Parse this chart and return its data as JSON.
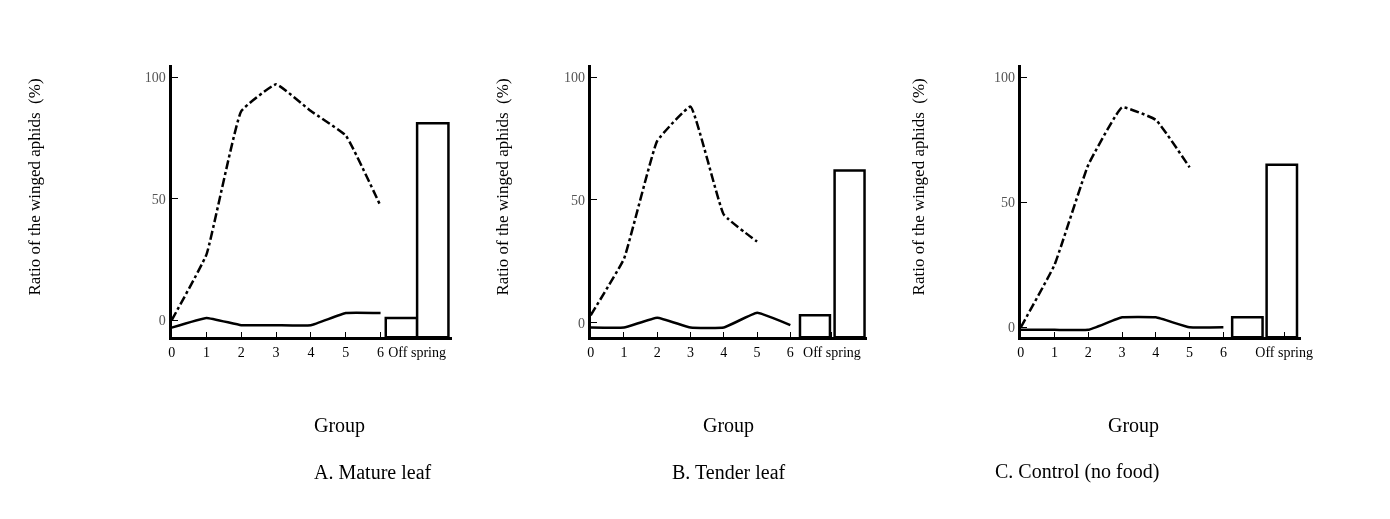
{
  "chart_data": [
    {
      "type": "line",
      "title": "A. Mature leaf",
      "xlabel": "Group",
      "ylabel": "Ratio of the winged aphids  (%)",
      "xlim": [
        0,
        8.05
      ],
      "xticks": [
        0,
        1,
        2,
        3,
        4,
        5,
        6,
        {
          "value": 7.05,
          "label": "Off spring"
        }
      ],
      "ylim": [
        -7,
        105
      ],
      "yticks": [
        0,
        50,
        100
      ],
      "series": [
        {
          "x": [
            0,
            1,
            2,
            3,
            4,
            5,
            6
          ],
          "values": [
            0,
            27,
            86,
            97,
            86,
            76,
            47
          ],
          "color": "#000000",
          "line_style": "dashed"
        },
        {
          "x": [
            0,
            1,
            2,
            3,
            4,
            5,
            6
          ],
          "values": [
            -3,
            1,
            -2,
            -2,
            -2,
            3,
            3
          ],
          "color": "#000000",
          "line_style": "solid"
        },
        {
          "type": "bar",
          "x": [
            6.6,
            7.5
          ],
          "values": [
            8,
            88
          ],
          "base": [
            -7,
            -7
          ],
          "colors": [
            "#ffffff",
            "#ffffff"
          ]
        }
      ]
    },
    {
      "type": "line",
      "title": "B. Tender leaf",
      "xlabel": "Group",
      "ylabel": "Ratio of the winged aphids  (%)",
      "xlim": [
        0,
        8.3
      ],
      "xticks": [
        0,
        1,
        2,
        3,
        4,
        5,
        6,
        {
          "value": 7.25,
          "label": "Off spring"
        }
      ],
      "ylim": [
        -6,
        105
      ],
      "yticks": [
        0,
        50,
        100
      ],
      "series": [
        {
          "x": [
            0,
            1,
            2,
            3,
            4,
            5
          ],
          "values": [
            3,
            26,
            74,
            88,
            44,
            33
          ],
          "color": "#000000",
          "line_style": "dashed"
        },
        {
          "x": [
            0,
            1,
            2,
            3,
            4,
            5,
            6
          ],
          "values": [
            -2,
            -2,
            2,
            -2,
            -2,
            4,
            -1
          ],
          "color": "#000000",
          "line_style": "solid"
        },
        {
          "type": "bar",
          "x": [
            6.74,
            7.78
          ],
          "values": [
            9,
            68
          ],
          "base": [
            -6,
            -6
          ],
          "colors": [
            "#ffffff",
            "#ffffff"
          ]
        }
      ]
    },
    {
      "type": "line",
      "title": "C. Control (no food)",
      "xlabel": "Group",
      "ylabel": "Ratio of the winged aphids  (%)",
      "xlim": [
        0,
        8.3
      ],
      "xticks": [
        0,
        1,
        2,
        3,
        4,
        5,
        6,
        {
          "value": 7.8,
          "label": "Off spring"
        }
      ],
      "ylim": [
        -4,
        105
      ],
      "yticks": [
        0,
        50,
        100
      ],
      "series": [
        {
          "x": [
            0,
            1,
            2,
            3,
            4,
            5
          ],
          "values": [
            0,
            25,
            65,
            88,
            83,
            64
          ],
          "color": "#000000",
          "line_style": "dashed"
        },
        {
          "x": [
            0,
            1,
            2,
            3,
            4,
            5,
            6
          ],
          "values": [
            -1,
            -1,
            -1,
            4,
            4,
            0,
            0
          ],
          "color": "#000000",
          "line_style": "solid"
        },
        {
          "type": "bar",
          "x": [
            6.71,
            7.73
          ],
          "values": [
            8,
            69
          ],
          "base": [
            -4,
            -4
          ],
          "colors": [
            "#ffffff",
            "#ffffff"
          ]
        }
      ]
    }
  ]
}
